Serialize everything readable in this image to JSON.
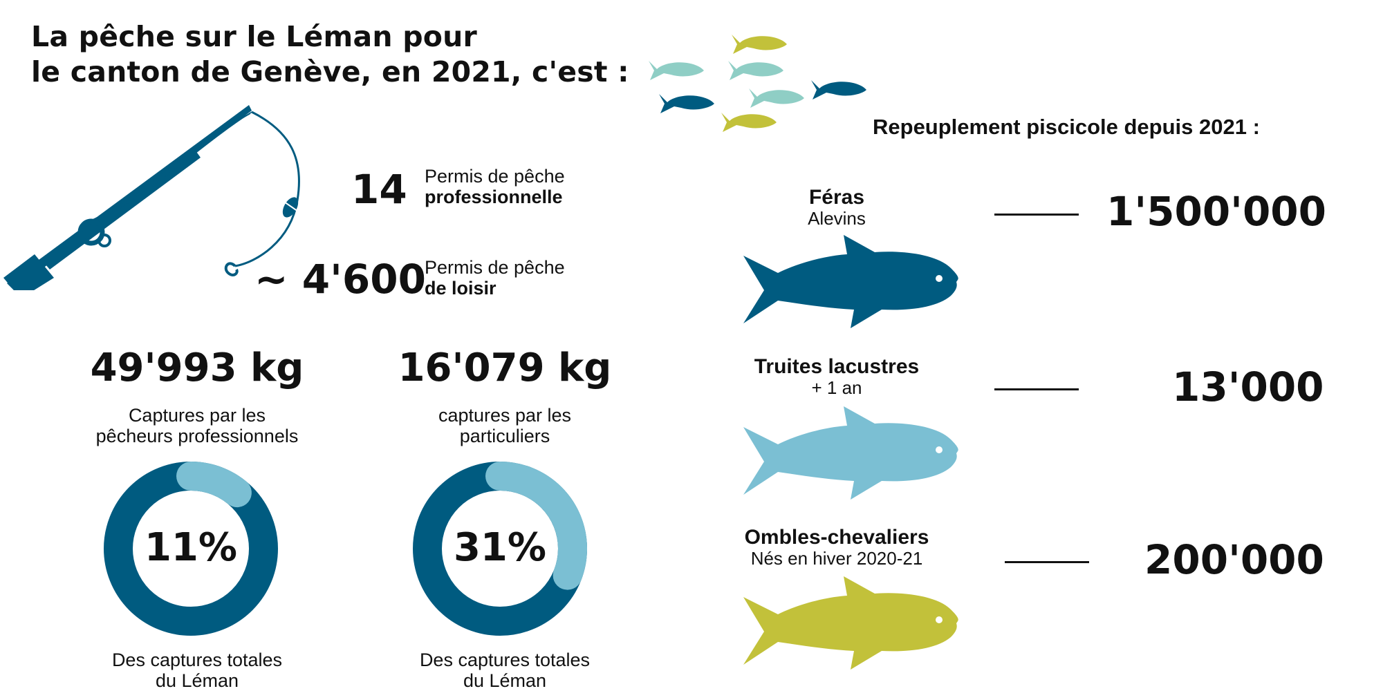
{
  "title": {
    "line1": "La pêche sur le Léman pour",
    "line2": "le canton de Genève, en 2021, c'est :"
  },
  "permits": {
    "pro": {
      "value": "14",
      "label_line1": "Permis de pêche",
      "label_line2": "professionnelle"
    },
    "leisure": {
      "value": "~ 4'600",
      "label_line1": "Permis de pêche",
      "label_line2": "de loisir"
    }
  },
  "catches": [
    {
      "amount": "49'993 kg",
      "label_line1": "Captures par les",
      "label_line2": "pêcheurs professionnels",
      "share_text": "11%",
      "share": 0.11,
      "footer_line1": "Des captures totales",
      "footer_line2": "du Léman"
    },
    {
      "amount": "16'079 kg",
      "label_line1": "captures par les",
      "label_line2": "particuliers",
      "share_text": "31%",
      "share": 0.31,
      "footer_line1": "Des captures totales",
      "footer_line2": "du Léman"
    }
  ],
  "restocking": {
    "heading": "Repeuplement piscicole depuis 2021 :",
    "items": [
      {
        "name": "Féras",
        "subtitle": "Alevins",
        "count": "1'500'000",
        "color": "#005b80"
      },
      {
        "name": "Truites lacustres",
        "subtitle": "+ 1 an",
        "count": "13'000",
        "color": "#7bbfd3"
      },
      {
        "name": "Ombles-chevaliers",
        "subtitle": "Nés en hiver 2020-21",
        "count": "200'000",
        "color": "#c2c13a"
      }
    ]
  },
  "colors": {
    "dark_blue": "#005b80",
    "light_blue": "#7bbfd3",
    "mint": "#8fcec5",
    "olive": "#c2c13a",
    "text": "#111111"
  },
  "icons": {
    "fishing_rod": "fishing-rod-icon",
    "school": "fish-school-icon"
  }
}
